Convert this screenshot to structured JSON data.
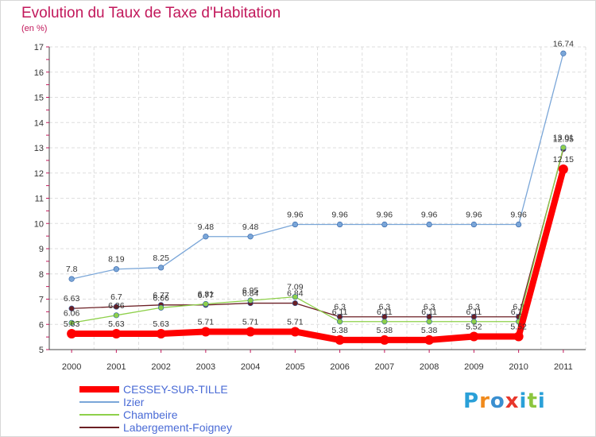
{
  "chart_data": {
    "type": "line",
    "title": "Evolution du Taux de Taxe d'Habitation",
    "subtitle": "(en %)",
    "x": [
      "2000",
      "2001",
      "2002",
      "2003",
      "2004",
      "2005",
      "2006",
      "2007",
      "2008",
      "2009",
      "2010",
      "2011"
    ],
    "ylim": [
      5,
      17
    ],
    "yticks": [
      "5",
      "6",
      "7",
      "8",
      "9",
      "10",
      "11",
      "12",
      "13",
      "14",
      "15",
      "16",
      "17"
    ],
    "grid": true,
    "series": [
      {
        "name": "Labergement-Foigney",
        "color": "#6b1f24",
        "values": [
          6.63,
          6.7,
          6.77,
          6.77,
          6.84,
          6.84,
          6.3,
          6.3,
          6.3,
          6.3,
          6.3,
          12.95
        ],
        "labels": [
          "6.63",
          "6.7",
          "6.77",
          "6.77",
          "6.84",
          "6.84",
          "6.3",
          "6.3",
          "6.3",
          "6.3",
          "6.3",
          "12.95"
        ]
      },
      {
        "name": "Chambeire",
        "color": "#8ed04a",
        "values": [
          6.06,
          6.36,
          6.66,
          6.81,
          6.95,
          7.09,
          6.11,
          6.11,
          6.11,
          6.11,
          6.11,
          13.01
        ],
        "labels": [
          "6.06",
          "6.36",
          "6.66",
          "6.81",
          "6.95",
          "7.09",
          "6.11",
          "6.11",
          "6.11",
          "6.11",
          "6.11",
          "13.01"
        ]
      },
      {
        "name": "Izier",
        "color": "#7aa6d8",
        "values": [
          7.8,
          8.19,
          8.25,
          9.48,
          9.48,
          9.96,
          9.96,
          9.96,
          9.96,
          9.96,
          9.96,
          16.74
        ],
        "labels": [
          "7.8",
          "8.19",
          "8.25",
          "9.48",
          "9.48",
          "9.96",
          "9.96",
          "9.96",
          "9.96",
          "9.96",
          "9.96",
          "16.74"
        ]
      },
      {
        "name": "CESSEY-SUR-TILLE",
        "color": "#ff0000",
        "values": [
          5.63,
          5.63,
          5.63,
          5.71,
          5.71,
          5.71,
          5.38,
          5.38,
          5.38,
          5.52,
          5.52,
          12.15
        ],
        "labels": [
          "5.63",
          "5.63",
          "5.63",
          "5.71",
          "5.71",
          "5.71",
          "5.38",
          "5.38",
          "5.38",
          "5.52",
          "5.52",
          "12.15"
        ]
      }
    ],
    "legend_order": [
      "CESSEY-SUR-TILLE",
      "Izier",
      "Chambeire",
      "Labergement-Foigney"
    ]
  },
  "legend": {
    "items": [
      {
        "label": "CESSEY-SUR-TILLE",
        "color": "#ff0000"
      },
      {
        "label": "Izier",
        "color": "#7aa6d8"
      },
      {
        "label": "Chambeire",
        "color": "#8ed04a"
      },
      {
        "label": "Labergement-Foigney",
        "color": "#6b1f24"
      }
    ]
  },
  "logo": {
    "letters": [
      "P",
      "r",
      "o",
      "x",
      "i",
      "t",
      "i"
    ],
    "colors": [
      "#2aa0d8",
      "#f08a1c",
      "#3a8fd0",
      "#e8372c",
      "#2aa0d8",
      "#8cc63f",
      "#2aa0d8"
    ]
  }
}
